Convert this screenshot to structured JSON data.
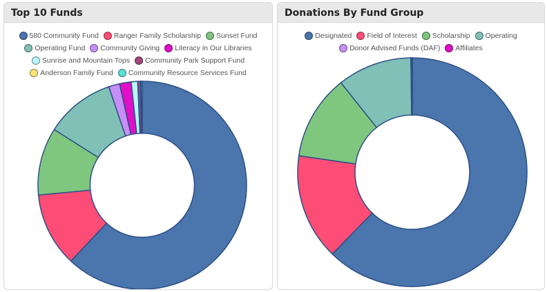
{
  "panels": {
    "left": {
      "title": "Top 10 Funds"
    },
    "right": {
      "title": "Donations By Fund Group"
    }
  },
  "chart_data": [
    {
      "type": "pie",
      "title": "Top 10 Funds",
      "donut": true,
      "categories": [
        "580 Community Fund",
        "Ranger Family Scholarship",
        "Sunset Fund",
        "Operating Fund",
        "Community Giving",
        "Literacy in Our Libraries",
        "Sunrise and Mountain Tops",
        "Community Park Support Fund",
        "Anderson Family Fund",
        "Community Resource Services Fund"
      ],
      "values": [
        62.0,
        11.5,
        10.5,
        10.8,
        1.7,
        1.8,
        1.0,
        0.4,
        0.1,
        0.2
      ],
      "colors": [
        "#4a75ad",
        "#fd4d76",
        "#7fc67f",
        "#80c0b6",
        "#c88ef8",
        "#e00fc8",
        "#b8f6fb",
        "#a0497a",
        "#fae475",
        "#59e0d0"
      ],
      "legend_rows": [
        [
          0,
          1,
          2
        ],
        [
          3,
          4,
          5
        ],
        [
          6,
          7
        ],
        [
          8,
          9
        ]
      ]
    },
    {
      "type": "pie",
      "title": "Donations By Fund Group",
      "donut": true,
      "categories": [
        "Designated",
        "Field of Interest",
        "Scholarship",
        "Operating",
        "Donor Advised Funds (DAF)",
        "Affiliates"
      ],
      "values": [
        62.3,
        15.0,
        12.0,
        10.5,
        0.1,
        0.1
      ],
      "colors": [
        "#4a75ad",
        "#fd4d76",
        "#7fc67f",
        "#80c0b6",
        "#c88ef8",
        "#e00fc8"
      ],
      "legend_rows": [
        [
          0,
          1,
          2,
          3
        ],
        [
          4,
          5
        ]
      ]
    }
  ]
}
